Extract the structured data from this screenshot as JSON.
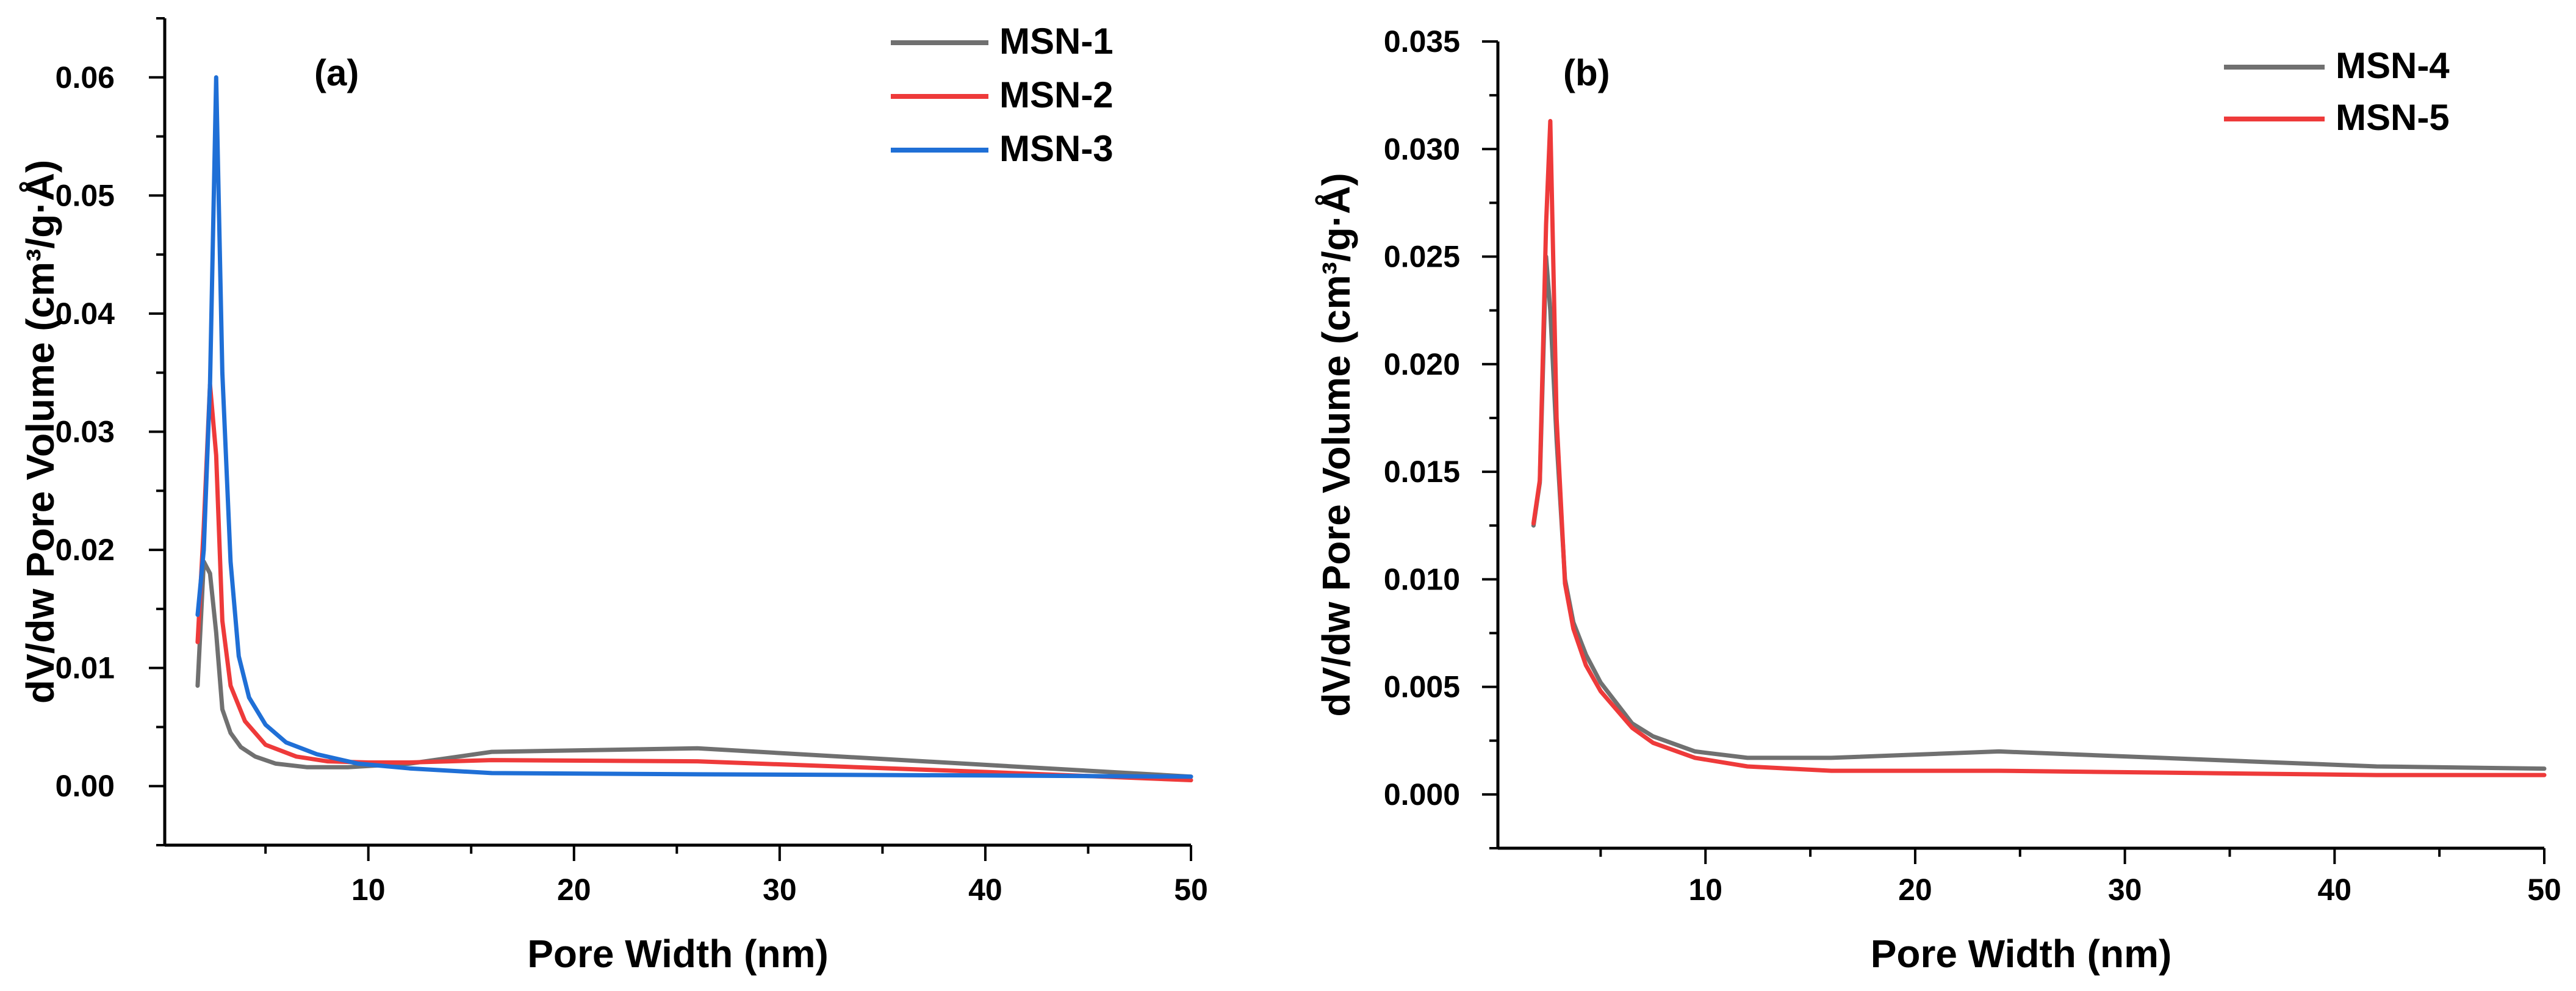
{
  "chart_data": [
    {
      "type": "line",
      "panel_label": "(a)",
      "xlabel": "Pore Width (nm)",
      "ylabel": "dV/dw Pore Volume (cm³/g·Å)",
      "xlim": [
        0.1,
        50
      ],
      "ylim": [
        -0.005,
        0.065
      ],
      "xticks": [
        10,
        20,
        30,
        40,
        50
      ],
      "xtick_labels": [
        "10",
        "20",
        "30",
        "40",
        "50"
      ],
      "yticks": [
        0.0,
        0.01,
        0.02,
        0.03,
        0.04,
        0.05,
        0.06
      ],
      "ytick_labels": [
        "0.00",
        "0.01",
        "0.02",
        "0.03",
        "0.04",
        "0.05",
        "0.06"
      ],
      "legend_position": "top-right",
      "series": [
        {
          "name": "MSN-1",
          "color": "#707070",
          "x": [
            1.7,
            2.0,
            2.3,
            2.6,
            2.9,
            3.3,
            3.8,
            4.5,
            5.5,
            7.0,
            9.0,
            12.0,
            16.0,
            26.0,
            40.0,
            50.0
          ],
          "y": [
            0.0085,
            0.019,
            0.018,
            0.013,
            0.0065,
            0.0045,
            0.0033,
            0.0025,
            0.0019,
            0.0016,
            0.0016,
            0.0019,
            0.0029,
            0.0032,
            0.0018,
            0.0008
          ]
        },
        {
          "name": "MSN-2",
          "color": "#ee3a3a",
          "x": [
            1.7,
            2.0,
            2.3,
            2.6,
            2.9,
            3.3,
            4.0,
            5.0,
            6.5,
            8.0,
            10.0,
            12.0,
            16.0,
            26.0,
            40.0,
            50.0
          ],
          "y": [
            0.0122,
            0.022,
            0.034,
            0.028,
            0.014,
            0.0085,
            0.0055,
            0.0035,
            0.0025,
            0.0021,
            0.002,
            0.002,
            0.0022,
            0.0021,
            0.0012,
            0.0005
          ]
        },
        {
          "name": "MSN-3",
          "color": "#1f6fd6",
          "x": [
            1.7,
            2.0,
            2.3,
            2.6,
            2.9,
            3.3,
            3.7,
            4.2,
            5.0,
            6.0,
            7.5,
            9.5,
            12.0,
            16.0,
            26.0,
            40.0,
            50.0
          ],
          "y": [
            0.0145,
            0.02,
            0.034,
            0.06,
            0.035,
            0.019,
            0.011,
            0.0075,
            0.0052,
            0.0037,
            0.0027,
            0.0019,
            0.0015,
            0.0011,
            0.001,
            0.0009,
            0.0008
          ]
        }
      ]
    },
    {
      "type": "line",
      "panel_label": "(b)",
      "xlabel": "Pore Width (nm)",
      "ylabel": "dV/dw Pore Volume (cm³/g·Å)",
      "xlim": [
        0.1,
        50
      ],
      "ylim": [
        -0.0025,
        0.035
      ],
      "xticks": [
        10,
        20,
        30,
        40,
        50
      ],
      "xtick_labels": [
        "10",
        "20",
        "30",
        "40",
        "50"
      ],
      "yticks": [
        0.0,
        0.005,
        0.01,
        0.015,
        0.02,
        0.025,
        0.03,
        0.035
      ],
      "ytick_labels": [
        "0.000",
        "0.005",
        "0.010",
        "0.015",
        "0.020",
        "0.025",
        "0.030",
        "0.035"
      ],
      "legend_position": "top-right",
      "series": [
        {
          "name": "MSN-4",
          "color": "#707070",
          "x": [
            1.8,
            2.1,
            2.4,
            2.6,
            2.9,
            3.3,
            3.7,
            4.3,
            5.0,
            6.5,
            7.5,
            9.5,
            12.0,
            16.0,
            24.0,
            42.0,
            50.0
          ],
          "y": [
            0.0125,
            0.0145,
            0.025,
            0.0225,
            0.0165,
            0.01,
            0.008,
            0.0065,
            0.0052,
            0.0033,
            0.0027,
            0.002,
            0.0017,
            0.0017,
            0.002,
            0.0013,
            0.0012
          ]
        },
        {
          "name": "MSN-5",
          "color": "#ee3a3a",
          "x": [
            1.8,
            2.1,
            2.4,
            2.6,
            2.9,
            3.3,
            3.7,
            4.3,
            5.0,
            6.5,
            7.5,
            9.5,
            12.0,
            16.0,
            24.0,
            42.0,
            50.0
          ],
          "y": [
            0.0126,
            0.0146,
            0.0265,
            0.0313,
            0.0175,
            0.0098,
            0.0077,
            0.006,
            0.0048,
            0.0031,
            0.0024,
            0.0017,
            0.0013,
            0.0011,
            0.0011,
            0.0009,
            0.0009
          ]
        }
      ]
    }
  ]
}
